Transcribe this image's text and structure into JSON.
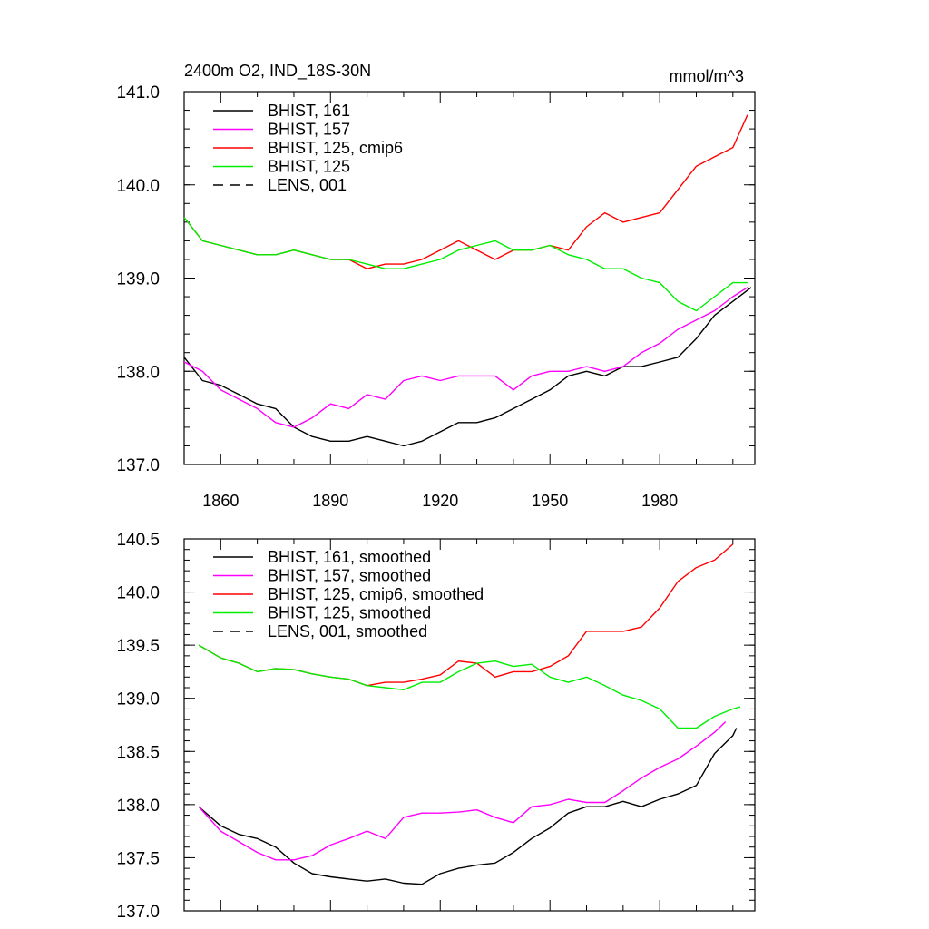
{
  "figure": {
    "title_left": "2400m O2, IND_18S-30N",
    "title_right": "mmol/m^3"
  },
  "chart_data": [
    {
      "type": "line",
      "title": "2400m O2, IND_18S-30N",
      "units": "mmol/m^3",
      "xlabel": "",
      "ylabel": "",
      "xlim": [
        1850,
        2006
      ],
      "ylim": [
        137.0,
        141.0
      ],
      "xticks": [
        1860,
        1890,
        1920,
        1950,
        1980
      ],
      "xtick_labels": [
        "1860",
        "1890",
        "1920",
        "1950",
        "1980"
      ],
      "yticks": [
        137.0,
        138.0,
        139.0,
        140.0,
        141.0
      ],
      "ytick_labels": [
        "137.0",
        "138.0",
        "139.0",
        "140.0",
        "141.0"
      ],
      "legend_position": "top-left",
      "series": [
        {
          "name": "BHIST, 161",
          "color": "#000000",
          "dash": "solid",
          "x": [
            1850,
            1855,
            1860,
            1865,
            1870,
            1875,
            1880,
            1885,
            1890,
            1895,
            1900,
            1905,
            1910,
            1915,
            1920,
            1925,
            1930,
            1935,
            1940,
            1945,
            1950,
            1955,
            1960,
            1965,
            1970,
            1975,
            1980,
            1985,
            1990,
            1995,
            2000,
            2005
          ],
          "y": [
            138.15,
            137.9,
            137.85,
            137.75,
            137.65,
            137.6,
            137.4,
            137.3,
            137.25,
            137.25,
            137.3,
            137.25,
            137.2,
            137.25,
            137.35,
            137.45,
            137.45,
            137.5,
            137.6,
            137.7,
            137.8,
            137.95,
            138.0,
            137.95,
            138.05,
            138.05,
            138.1,
            138.15,
            138.35,
            138.6,
            138.75,
            138.9
          ]
        },
        {
          "name": "BHIST, 157",
          "color": "#ff00ff",
          "dash": "solid",
          "x": [
            1850,
            1855,
            1860,
            1865,
            1870,
            1875,
            1880,
            1885,
            1890,
            1895,
            1900,
            1905,
            1910,
            1915,
            1920,
            1925,
            1930,
            1935,
            1940,
            1945,
            1950,
            1955,
            1960,
            1965,
            1970,
            1975,
            1980,
            1985,
            1990,
            1995,
            2000,
            2004
          ],
          "y": [
            138.1,
            138.0,
            137.8,
            137.7,
            137.6,
            137.45,
            137.4,
            137.5,
            137.65,
            137.6,
            137.75,
            137.7,
            137.9,
            137.95,
            137.9,
            137.95,
            137.95,
            137.95,
            137.8,
            137.95,
            138.0,
            138.0,
            138.05,
            138.0,
            138.05,
            138.2,
            138.3,
            138.45,
            138.55,
            138.65,
            138.8,
            138.9
          ]
        },
        {
          "name": "BHIST, 125, cmip6",
          "color": "#ff0000",
          "dash": "solid",
          "x": [
            1850,
            1855,
            1860,
            1865,
            1870,
            1875,
            1880,
            1885,
            1890,
            1895,
            1900,
            1905,
            1910,
            1915,
            1920,
            1925,
            1930,
            1935,
            1940,
            1945,
            1950,
            1955,
            1960,
            1965,
            1970,
            1975,
            1980,
            1985,
            1990,
            1995,
            2000,
            2004
          ],
          "y": [
            139.65,
            139.4,
            139.35,
            139.3,
            139.25,
            139.25,
            139.3,
            139.25,
            139.2,
            139.2,
            139.1,
            139.15,
            139.15,
            139.2,
            139.3,
            139.4,
            139.3,
            139.2,
            139.3,
            139.3,
            139.35,
            139.3,
            139.55,
            139.7,
            139.6,
            139.65,
            139.7,
            139.95,
            140.2,
            140.3,
            140.4,
            140.75
          ]
        },
        {
          "name": "BHIST, 125",
          "color": "#00ee00",
          "dash": "solid",
          "x": [
            1850,
            1855,
            1860,
            1865,
            1870,
            1875,
            1880,
            1885,
            1890,
            1895,
            1900,
            1905,
            1910,
            1915,
            1920,
            1925,
            1930,
            1935,
            1940,
            1945,
            1950,
            1955,
            1960,
            1965,
            1970,
            1975,
            1980,
            1985,
            1990,
            1995,
            2000,
            2004
          ],
          "y": [
            139.65,
            139.4,
            139.35,
            139.3,
            139.25,
            139.25,
            139.3,
            139.25,
            139.2,
            139.2,
            139.15,
            139.1,
            139.1,
            139.15,
            139.2,
            139.3,
            139.35,
            139.4,
            139.3,
            139.3,
            139.35,
            139.25,
            139.2,
            139.1,
            139.1,
            139.0,
            138.95,
            138.75,
            138.65,
            138.8,
            138.95,
            138.95
          ]
        },
        {
          "name": "LENS, 001",
          "color": "#000000",
          "dash": "dashed",
          "x": [],
          "y": []
        }
      ]
    },
    {
      "type": "line",
      "title": "",
      "xlabel": "",
      "ylabel": "",
      "xlim": [
        1850,
        2006
      ],
      "ylim": [
        137.0,
        140.5
      ],
      "xticks": [
        1860,
        1890,
        1920,
        1950,
        1980
      ],
      "xtick_labels": [],
      "yticks": [
        137.0,
        137.5,
        138.0,
        138.5,
        139.0,
        139.5,
        140.0,
        140.5
      ],
      "ytick_labels": [
        "137.0",
        "137.5",
        "138.0",
        "138.5",
        "139.0",
        "139.5",
        "140.0",
        "140.5"
      ],
      "legend_position": "top-left",
      "series": [
        {
          "name": "BHIST, 161, smoothed",
          "color": "#000000",
          "dash": "solid",
          "x": [
            1854,
            1860,
            1865,
            1870,
            1875,
            1880,
            1885,
            1890,
            1895,
            1900,
            1905,
            1910,
            1915,
            1920,
            1925,
            1930,
            1935,
            1940,
            1945,
            1950,
            1955,
            1960,
            1965,
            1970,
            1975,
            1980,
            1985,
            1990,
            1995,
            2000,
            2001
          ],
          "y": [
            137.98,
            137.8,
            137.72,
            137.68,
            137.6,
            137.45,
            137.35,
            137.32,
            137.3,
            137.28,
            137.3,
            137.26,
            137.25,
            137.35,
            137.4,
            137.43,
            137.45,
            137.55,
            137.68,
            137.78,
            137.92,
            137.98,
            137.98,
            138.03,
            137.98,
            138.05,
            138.1,
            138.18,
            138.48,
            138.65,
            138.72
          ]
        },
        {
          "name": "BHIST, 157, smoothed",
          "color": "#ff00ff",
          "dash": "solid",
          "x": [
            1854,
            1860,
            1865,
            1870,
            1875,
            1880,
            1885,
            1890,
            1895,
            1900,
            1905,
            1910,
            1915,
            1920,
            1925,
            1930,
            1935,
            1940,
            1945,
            1950,
            1955,
            1960,
            1965,
            1970,
            1975,
            1980,
            1985,
            1990,
            1995,
            1998
          ],
          "y": [
            137.98,
            137.75,
            137.65,
            137.55,
            137.48,
            137.48,
            137.52,
            137.62,
            137.68,
            137.75,
            137.68,
            137.88,
            137.92,
            137.92,
            137.93,
            137.95,
            137.88,
            137.83,
            137.98,
            138.0,
            138.05,
            138.02,
            138.02,
            138.13,
            138.25,
            138.35,
            138.43,
            138.55,
            138.68,
            138.78
          ]
        },
        {
          "name": "BHIST, 125, cmip6, smoothed",
          "color": "#ff0000",
          "dash": "solid",
          "x": [
            1854,
            1860,
            1865,
            1870,
            1875,
            1880,
            1885,
            1890,
            1895,
            1900,
            1905,
            1910,
            1915,
            1920,
            1925,
            1930,
            1935,
            1940,
            1945,
            1950,
            1955,
            1960,
            1965,
            1970,
            1975,
            1980,
            1985,
            1990,
            1995,
            2000
          ],
          "y": [
            139.5,
            139.38,
            139.33,
            139.25,
            139.28,
            139.27,
            139.23,
            139.2,
            139.18,
            139.12,
            139.15,
            139.15,
            139.18,
            139.22,
            139.35,
            139.33,
            139.2,
            139.25,
            139.25,
            139.3,
            139.4,
            139.63,
            139.63,
            139.63,
            139.67,
            139.85,
            140.1,
            140.23,
            140.3,
            140.45
          ]
        },
        {
          "name": "BHIST, 125, smoothed",
          "color": "#00ee00",
          "dash": "solid",
          "x": [
            1854,
            1860,
            1865,
            1870,
            1875,
            1880,
            1885,
            1890,
            1895,
            1900,
            1905,
            1910,
            1915,
            1920,
            1925,
            1930,
            1935,
            1940,
            1945,
            1950,
            1955,
            1960,
            1965,
            1970,
            1975,
            1980,
            1985,
            1990,
            1995,
            2000,
            2002
          ],
          "y": [
            139.5,
            139.38,
            139.33,
            139.25,
            139.28,
            139.27,
            139.23,
            139.2,
            139.18,
            139.12,
            139.1,
            139.08,
            139.15,
            139.15,
            139.25,
            139.33,
            139.35,
            139.3,
            139.32,
            139.2,
            139.15,
            139.2,
            139.12,
            139.03,
            138.98,
            138.9,
            138.72,
            138.72,
            138.83,
            138.9,
            138.92
          ]
        },
        {
          "name": "LENS, 001, smoothed",
          "color": "#000000",
          "dash": "dashed",
          "x": [],
          "y": []
        }
      ]
    }
  ]
}
